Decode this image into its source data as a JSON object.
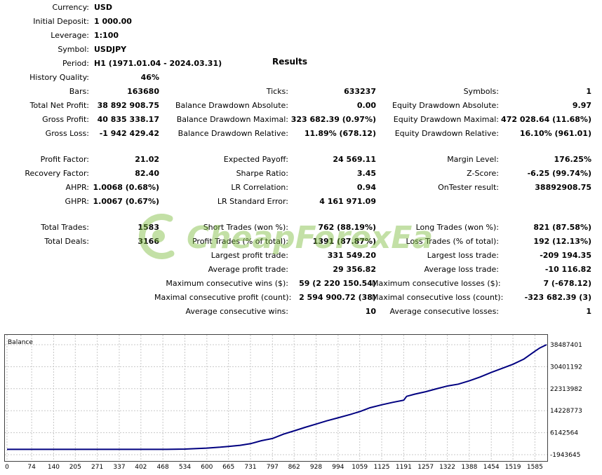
{
  "header": {
    "rows": [
      {
        "key": "currency",
        "label": "Currency:",
        "value": "USD"
      },
      {
        "key": "deposit",
        "label": "Initial Deposit:",
        "value": "1 000.00"
      },
      {
        "key": "leverage",
        "label": "Leverage:",
        "value": "1:100"
      },
      {
        "key": "symbol",
        "label": "Symbol:",
        "value": "USDJPY"
      },
      {
        "key": "period",
        "label": "Period:",
        "value": "H1 (1971.01.04 - 2024.03.31)"
      }
    ],
    "results_title": "Results"
  },
  "col1": [
    {
      "key": "history-quality",
      "label": "History Quality:",
      "value": "46%"
    },
    {
      "key": "bars",
      "label": "Bars:",
      "value": "163680"
    },
    {
      "key": "total-net-profit",
      "label": "Total Net Profit:",
      "value": "38 892 908.75"
    },
    {
      "key": "gross-profit",
      "label": "Gross Profit:",
      "value": "40 835 338.17"
    },
    {
      "key": "gross-loss",
      "label": "Gross Loss:",
      "value": "-1 942 429.42"
    },
    {
      "key": "profit-factor",
      "label": "Profit Factor:",
      "value": "21.02"
    },
    {
      "key": "recovery-factor",
      "label": "Recovery Factor:",
      "value": "82.40"
    },
    {
      "key": "ahpr",
      "label": "AHPR:",
      "value": "1.0068 (0.68%)"
    },
    {
      "key": "ghpr",
      "label": "GHPR:",
      "value": "1.0067 (0.67%)"
    },
    {
      "key": "total-trades",
      "label": "Total Trades:",
      "value": "1583"
    },
    {
      "key": "total-deals",
      "label": "Total Deals:",
      "value": "3166"
    }
  ],
  "col2": [
    {
      "key": "ticks",
      "label": "Ticks:",
      "value": "633237"
    },
    {
      "key": "balance-dd-abs",
      "label": "Balance Drawdown Absolute:",
      "value": "0.00"
    },
    {
      "key": "balance-dd-max",
      "label": "Balance Drawdown Maximal:",
      "value": "323 682.39 (0.97%)"
    },
    {
      "key": "balance-dd-rel",
      "label": "Balance Drawdown Relative:",
      "value": "11.89% (678.12)"
    },
    {
      "key": "expected-payoff",
      "label": "Expected Payoff:",
      "value": "24 569.11"
    },
    {
      "key": "sharpe",
      "label": "Sharpe Ratio:",
      "value": "3.45"
    },
    {
      "key": "lr-corr",
      "label": "LR Correlation:",
      "value": "0.94"
    },
    {
      "key": "lr-std",
      "label": "LR Standard Error:",
      "value": "4 161 971.09"
    },
    {
      "key": "short-trades",
      "label": "Short Trades (won %):",
      "value": "762 (88.19%)"
    },
    {
      "key": "profit-trades",
      "label": "Profit Trades (% of total):",
      "value": "1391 (87.87%)"
    },
    {
      "key": "largest-profit",
      "label": "Largest profit trade:",
      "value": "331 549.20"
    },
    {
      "key": "average-profit",
      "label": "Average profit trade:",
      "value": "29 356.82"
    },
    {
      "key": "max-cons-wins",
      "label": "Maximum consecutive wins ($):",
      "value": "59 (2 220 150.54)"
    },
    {
      "key": "maximal-cons-profit",
      "label": "Maximal consecutive profit (count):",
      "value": "2 594 900.72 (38)"
    },
    {
      "key": "avg-cons-wins",
      "label": "Average consecutive wins:",
      "value": "10"
    }
  ],
  "col3": [
    {
      "key": "symbols",
      "label": "Symbols:",
      "value": "1"
    },
    {
      "key": "equity-dd-abs",
      "label": "Equity Drawdown Absolute:",
      "value": "9.97"
    },
    {
      "key": "equity-dd-max",
      "label": "Equity Drawdown Maximal:",
      "value": "472 028.64 (11.68%)"
    },
    {
      "key": "equity-dd-rel",
      "label": "Equity Drawdown Relative:",
      "value": "16.10% (961.01)"
    },
    {
      "key": "margin-level",
      "label": "Margin Level:",
      "value": "176.25%"
    },
    {
      "key": "z-score",
      "label": "Z-Score:",
      "value": "-6.25 (99.74%)"
    },
    {
      "key": "ontester",
      "label": "OnTester result:",
      "value": "38892908.75"
    },
    {
      "key": "long-trades",
      "label": "Long Trades (won %):",
      "value": "821 (87.58%)"
    },
    {
      "key": "loss-trades",
      "label": "Loss Trades (% of total):",
      "value": "192 (12.13%)"
    },
    {
      "key": "largest-loss",
      "label": "Largest loss trade:",
      "value": "-209 194.35"
    },
    {
      "key": "average-loss",
      "label": "Average loss trade:",
      "value": "-10 116.82"
    },
    {
      "key": "max-cons-losses",
      "label": "Maximum consecutive losses ($):",
      "value": "7 (-678.12)"
    },
    {
      "key": "maximal-cons-loss",
      "label": "Maximal consecutive loss (count):",
      "value": "-323 682.39 (3)"
    },
    {
      "key": "avg-cons-losses",
      "label": "Average consecutive losses:",
      "value": "1"
    }
  ],
  "watermark": {
    "text": "CheapForexEa"
  },
  "colors": {
    "line": "#000080",
    "grid": "#c8c8c8",
    "watermark": "#7cbc3c"
  },
  "chart_data": {
    "type": "line",
    "title": "Balance",
    "xlabel": "",
    "ylabel": "",
    "x_ticks": [
      0,
      74,
      140,
      205,
      271,
      337,
      402,
      468,
      534,
      600,
      665,
      731,
      797,
      862,
      928,
      994,
      1059,
      1125,
      1191,
      1257,
      1322,
      1388,
      1454,
      1519,
      1585
    ],
    "y_ticks": [
      38487401,
      30401192,
      22313982,
      14228773,
      6142564,
      -1943645
    ],
    "xlim": [
      0,
      1620
    ],
    "ylim": [
      -1943645,
      38487401
    ],
    "grid": true,
    "series": [
      {
        "name": "Balance",
        "x": [
          0,
          100,
          200,
          300,
          380,
          430,
          480,
          534,
          600,
          640,
          665,
          700,
          731,
          764,
          797,
          830,
          862,
          895,
          928,
          960,
          994,
          1030,
          1059,
          1090,
          1125,
          1158,
          1191,
          1200,
          1224,
          1257,
          1290,
          1322,
          1355,
          1388,
          1420,
          1454,
          1487,
          1519,
          1552,
          1585,
          1600,
          1620
        ],
        "y": [
          1000,
          1000,
          1000,
          1000,
          1000,
          2000,
          15000,
          120000,
          480000,
          800000,
          1100000,
          1500000,
          2100000,
          3200000,
          4000000,
          5600000,
          6800000,
          8100000,
          9300000,
          10500000,
          11600000,
          12800000,
          13900000,
          15300000,
          16400000,
          17300000,
          18100000,
          19500000,
          20300000,
          21200000,
          22300000,
          23300000,
          24000000,
          25200000,
          26600000,
          28300000,
          29800000,
          31300000,
          33200000,
          36100000,
          37300000,
          38487401
        ]
      }
    ]
  }
}
